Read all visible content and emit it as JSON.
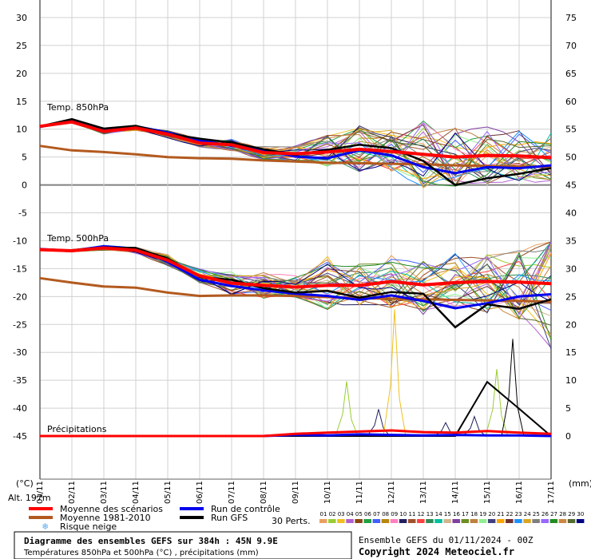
{
  "chart_data": {
    "type": "line",
    "title": "Diagramme des ensembles GEFS sur 384h : 45N 9.9E",
    "subtitle": "Températures 850hPa et 500hPa (°C) , précipitations (mm)",
    "run_info": "Ensemble GEFS du 01/11/2024 - 00Z",
    "copyright": "Copyright 2024 Meteociel.fr",
    "left_axis": {
      "unit": "(°C)",
      "ticks": [
        30,
        25,
        20,
        15,
        10,
        5,
        0,
        -5,
        -10,
        -15,
        -20,
        -25,
        -30,
        -35,
        -40,
        -45
      ],
      "ylim": [
        -45,
        30
      ]
    },
    "right_axis": {
      "unit": "(mm)",
      "ticks": [
        75,
        70,
        65,
        60,
        55,
        50,
        45,
        40,
        35,
        30,
        25,
        20,
        15,
        10,
        5,
        0
      ],
      "ylim": [
        0,
        75
      ]
    },
    "altitude_label": "Alt. 197m",
    "x_dates": [
      "01/11",
      "02/11",
      "03/11",
      "04/11",
      "05/11",
      "06/11",
      "07/11",
      "08/11",
      "09/11",
      "10/11",
      "11/11",
      "12/11",
      "13/11",
      "14/11",
      "15/11",
      "16/11",
      "17/11"
    ],
    "panel_labels": {
      "t850": "Temp. 850hPa",
      "t500": "Temp. 500hPa",
      "precip": "Précipitations"
    },
    "legend": {
      "mean": "Moyenne des scénarios",
      "climo": "Moyenne 1981-2010",
      "snow": "Risque neige",
      "control": "Run de contrôle",
      "gfs": "Run GFS",
      "perts_label": "30 Perts."
    },
    "perturbations": [
      "01",
      "02",
      "03",
      "04",
      "05",
      "06",
      "07",
      "08",
      "09",
      "10",
      "11",
      "12",
      "13",
      "14",
      "15",
      "16",
      "17",
      "18",
      "19",
      "20",
      "21",
      "22",
      "23",
      "24",
      "25",
      "26",
      "27",
      "28",
      "29",
      "30"
    ],
    "pert_colors": [
      "#e8a060",
      "#9acd32",
      "#f0c020",
      "#b060d0",
      "#8b4513",
      "#20a040",
      "#4060ff",
      "#b8860b",
      "#ff80c0",
      "#202060",
      "#a0522d",
      "#ff4040",
      "#2e8b57",
      "#00c0a0",
      "#d2b48c",
      "#8040a0",
      "#6b8e23",
      "#c08040",
      "#90ee90",
      "#404080",
      "#ffa500",
      "#703030",
      "#1e90ff",
      "#daa520",
      "#7f7f7f",
      "#9966ff",
      "#228b22",
      "#cd853f",
      "#556b2f",
      "#000080"
    ],
    "colors": {
      "mean": "#ff0000",
      "climo": "#b35a1f",
      "control": "#0000ee",
      "gfs": "#000000",
      "snow": "#55aaee"
    },
    "t850": {
      "mean": [
        10.5,
        11.3,
        9.6,
        10.2,
        9.1,
        7.5,
        7.2,
        5.8,
        5.6,
        5.9,
        6.4,
        6.0,
        5.5,
        5.0,
        5.3,
        5.2,
        4.9
      ],
      "climo": [
        7.0,
        6.2,
        5.9,
        5.5,
        5.0,
        4.8,
        4.7,
        4.4,
        4.2,
        4.0,
        3.9,
        3.8,
        3.7,
        3.5,
        3.4,
        3.3,
        3.2
      ],
      "control": [
        10.4,
        11.5,
        9.9,
        10.5,
        9.4,
        8.0,
        7.0,
        6.3,
        5.1,
        4.8,
        6.2,
        5.3,
        3.2,
        2.1,
        3.2,
        3.0,
        3.5
      ],
      "gfs": [
        10.5,
        11.8,
        10.1,
        10.6,
        9.2,
        8.3,
        7.6,
        6.4,
        5.4,
        6.3,
        7.2,
        6.6,
        4.3,
        0.0,
        1.2,
        2.0,
        3.0
      ],
      "spread_low": [
        10.2,
        10.8,
        8.2,
        9.0,
        7.6,
        6.4,
        5.8,
        4.3,
        3.1,
        2.6,
        2.4,
        1.9,
        -1.0,
        -0.2,
        0.0,
        0.8,
        0.8
      ],
      "spread_high": [
        10.8,
        12.1,
        11.0,
        11.5,
        10.3,
        9.0,
        9.2,
        8.0,
        8.2,
        10.4,
        12.5,
        11.3,
        13.0,
        12.3,
        11.1,
        10.2,
        9.5
      ]
    },
    "t500": {
      "mean": [
        -11.6,
        -11.8,
        -11.3,
        -11.7,
        -13.5,
        -16.3,
        -17.6,
        -18.0,
        -18.3,
        -18.0,
        -18.0,
        -17.3,
        -17.9,
        -17.5,
        -17.3,
        -17.4,
        -17.7
      ],
      "climo": [
        -16.7,
        -17.5,
        -18.2,
        -18.4,
        -19.3,
        -19.9,
        -19.8,
        -19.8,
        -19.9,
        -20.1,
        -20.3,
        -20.4,
        -20.5,
        -20.6,
        -20.7,
        -20.8,
        -20.9
      ],
      "control": [
        -11.5,
        -11.8,
        -11.0,
        -11.4,
        -13.8,
        -17.0,
        -18.1,
        -18.9,
        -19.5,
        -19.9,
        -20.6,
        -19.8,
        -20.8,
        -22.1,
        -21.2,
        -20.0,
        -19.6
      ],
      "gfs": [
        -11.7,
        -11.7,
        -11.2,
        -11.3,
        -13.2,
        -16.5,
        -17.0,
        -18.5,
        -19.3,
        -19.0,
        -20.2,
        -19.2,
        -19.5,
        -25.5,
        -21.4,
        -22.2,
        -20.5
      ],
      "spread_low": [
        -12.3,
        -12.6,
        -12.7,
        -13.3,
        -16.0,
        -19.0,
        -21.5,
        -22.0,
        -21.6,
        -22.3,
        -23.3,
        -22.5,
        -24.5,
        -24.0,
        -23.8,
        -24.5,
        -30.0
      ],
      "spread_high": [
        -11.1,
        -11.1,
        -10.6,
        -10.7,
        -11.7,
        -13.6,
        -14.2,
        -15.0,
        -15.5,
        -10.2,
        -12.5,
        -10.8,
        -11.5,
        -12.0,
        -12.5,
        -11.8,
        -10.2
      ]
    },
    "precip": {
      "mean": [
        0,
        0,
        0,
        0,
        0,
        0,
        0,
        0,
        0.4,
        0.6,
        0.8,
        1.0,
        0.7,
        0.6,
        0.9,
        0.6,
        0.4
      ],
      "control": [
        0,
        0,
        0,
        0,
        0,
        0,
        0,
        0,
        0.2,
        0.1,
        0.3,
        0.2,
        0.1,
        0.2,
        0.1,
        0.1,
        0
      ],
      "gfs": [
        0,
        0,
        0,
        0,
        0,
        0,
        0,
        0,
        0,
        0,
        0,
        0,
        0,
        0,
        9.7,
        4.9,
        0
      ],
      "peaks": [
        {
          "x": 9.6,
          "v": 9.8
        },
        {
          "x": 10.6,
          "v": 4.8
        },
        {
          "x": 11.1,
          "v": 22.7
        },
        {
          "x": 12.7,
          "v": 2.4
        },
        {
          "x": 13.6,
          "v": 3.5
        },
        {
          "x": 14.3,
          "v": 12.0
        },
        {
          "x": 14.8,
          "v": 17.4
        }
      ]
    }
  }
}
